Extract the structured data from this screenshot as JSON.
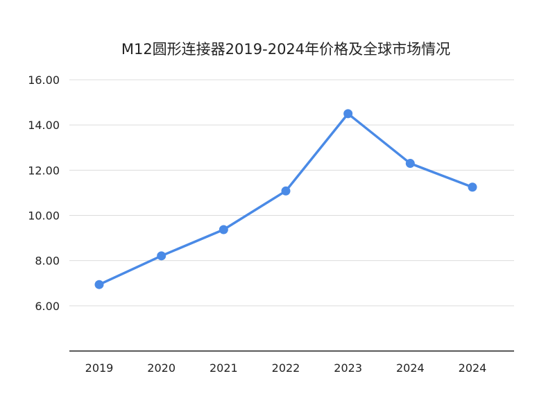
{
  "chart_data": {
    "type": "line",
    "title": "M12圆形连接器2019-2024年价格及全球市场情况",
    "xlabel": "",
    "ylabel": "",
    "categories": [
      "2019",
      "2020",
      "2021",
      "2022",
      "2023",
      "2024",
      "2024"
    ],
    "series": [
      {
        "values": [
          6.94,
          8.21,
          9.37,
          11.08,
          14.5,
          12.3,
          11.25
        ],
        "color": "#4a8ae6"
      }
    ],
    "ylim": [
      4,
      16
    ],
    "yticks": [
      "6.00",
      "8.00",
      "10.00",
      "12.00",
      "14.00",
      "16.00"
    ],
    "grid": true,
    "legend": "none"
  }
}
